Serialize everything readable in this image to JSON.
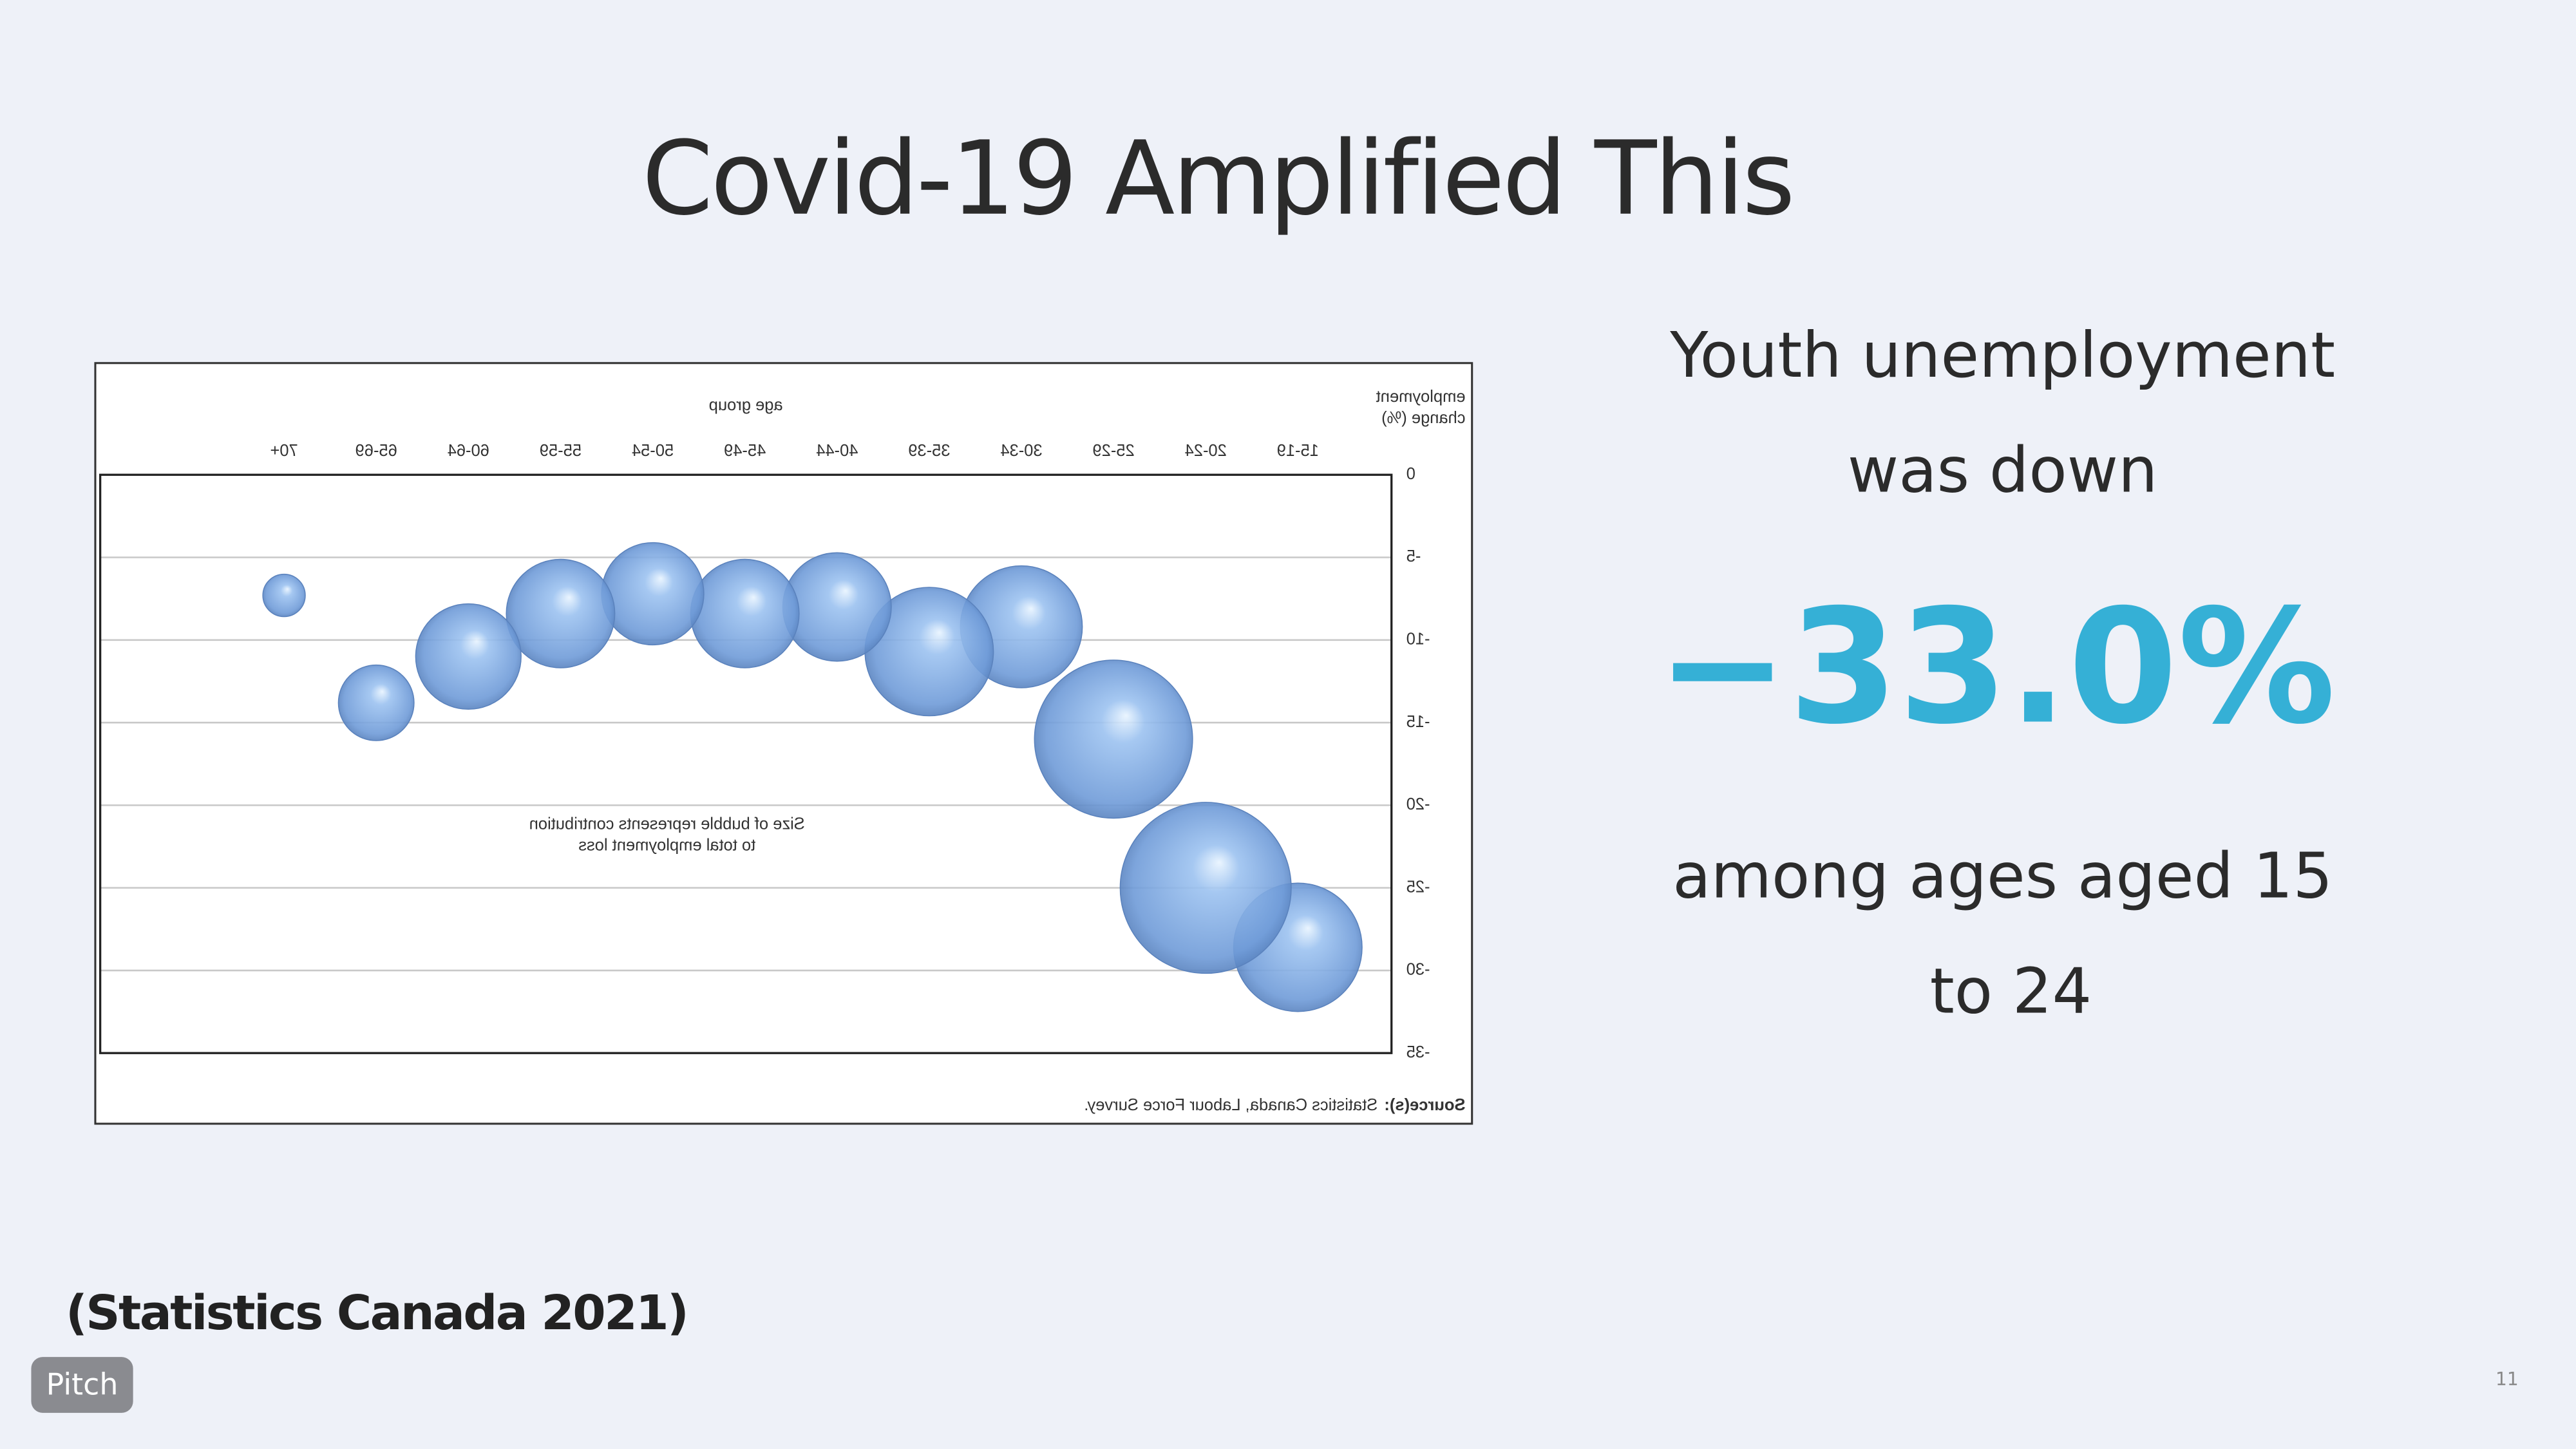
{
  "slide": {
    "title": "Covid-19 Amplified This",
    "lines": [
      "Youth unemployment",
      "was down"
    ],
    "stat": "−33.0%",
    "tail": [
      "among ages aged 15",
      "to 24"
    ],
    "citation": "(Statistics Canada 2021)",
    "badge": "Pitch",
    "page_number": "11"
  },
  "chart_data": {
    "type": "bubble",
    "x_label": "age group",
    "y_label": [
      "employment",
      "change (%)"
    ],
    "annotation": [
      "Size of bubble represents contribution",
      "to total employment loss"
    ],
    "source_label": "Source(s):",
    "source": "Statistics Canada, Labour Force Survey.",
    "categories": [
      "15-19",
      "20-24",
      "25-29",
      "30-34",
      "35-39",
      "40-44",
      "45-49",
      "50-54",
      "55-59",
      "60-64",
      "65-69",
      "70+"
    ],
    "values": [
      -28.6,
      -25.0,
      -16.0,
      -9.2,
      -10.7,
      -8.0,
      -8.4,
      -7.2,
      -8.4,
      -11.0,
      -13.8,
      -7.3
    ],
    "sizes": [
      10.1,
      17.9,
      15.3,
      9.1,
      10.1,
      7.2,
      7.2,
      6.4,
      7.2,
      6.8,
      3.5,
      1.1
    ],
    "ylim": [
      -35,
      0
    ],
    "yticks": [
      0,
      -5,
      -10,
      -15,
      -20,
      -25,
      -30,
      -35
    ],
    "grid": true,
    "mirrored": true,
    "color": "#6f9bd8"
  }
}
